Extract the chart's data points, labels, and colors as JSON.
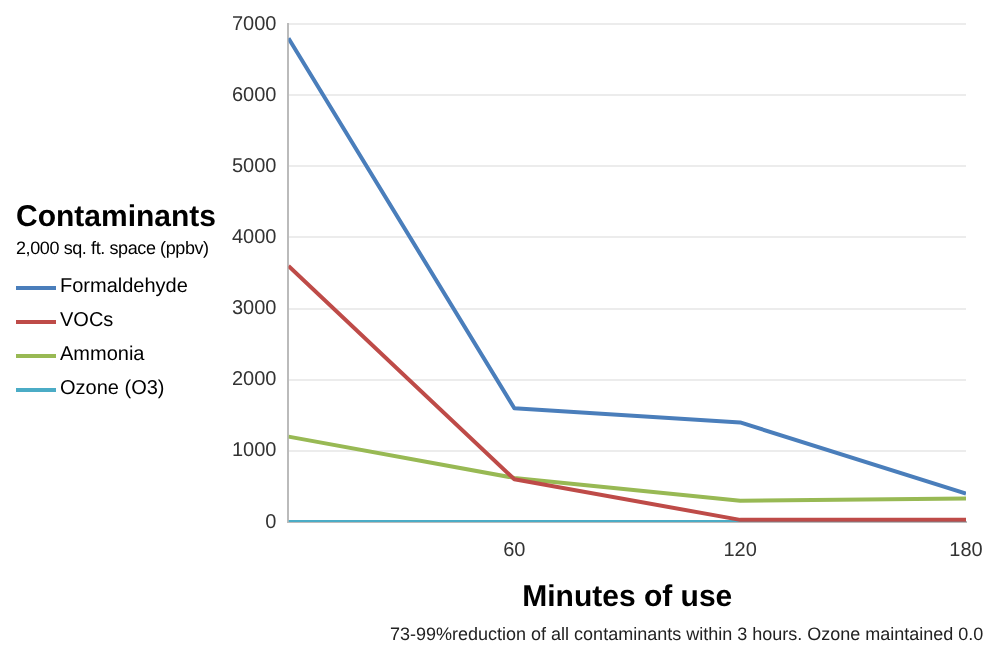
{
  "chart_data": {
    "type": "line",
    "legend_title": "Contaminants",
    "xlabel": "Minutes of use",
    "annotations": [
      "2,000 sq. ft. space (ppbv)",
      "73-99%reduction of all contaminants within 3 hours.  Ozone maintained 0.0"
    ],
    "x": [
      0,
      60,
      120,
      180
    ],
    "series": [
      {
        "name": "Formaldehyde",
        "color": "#4a7ebb",
        "values": [
          6800,
          1600,
          1400,
          400
        ]
      },
      {
        "name": "VOCs",
        "color": "#be4b48",
        "values": [
          3600,
          600,
          30,
          30
        ]
      },
      {
        "name": "Ammonia",
        "color": "#98b954",
        "values": [
          1200,
          620,
          300,
          330
        ]
      },
      {
        "name": "Ozone (O3)",
        "color": "#4bacc6",
        "values": [
          0,
          0,
          0,
          0
        ]
      }
    ],
    "xlim": [
      0,
      180
    ],
    "xticks": [
      60,
      120,
      180
    ],
    "ylim": [
      0,
      7000
    ],
    "yticks": [
      0,
      1000,
      2000,
      3000,
      4000,
      5000,
      6000,
      7000
    ],
    "grid": "y",
    "legend": "left",
    "marker": "none",
    "line_style": "solid"
  }
}
